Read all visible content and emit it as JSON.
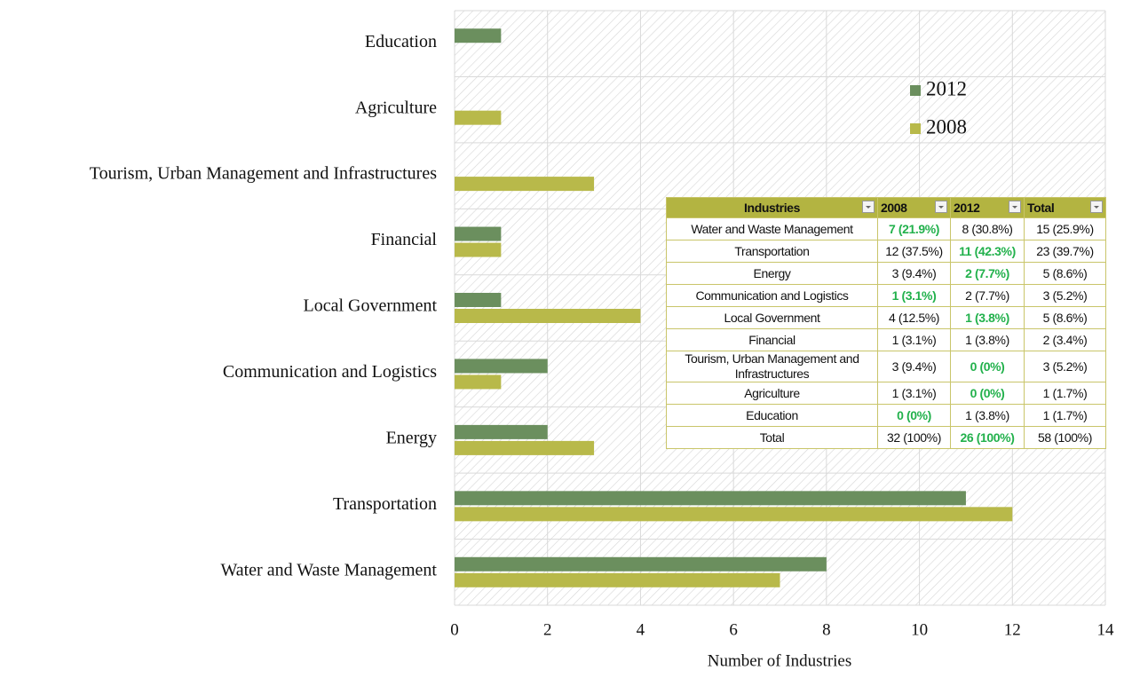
{
  "chart_data": {
    "type": "bar",
    "orientation": "horizontal",
    "categories": [
      "Education",
      "Agriculture",
      "Tourism, Urban Management and Infrastructures",
      "Financial",
      "Local Government",
      "Communication and Logistics",
      "Energy",
      "Transportation",
      "Water and Waste Management"
    ],
    "series": [
      {
        "name": "2012",
        "color": "#6b8f5e",
        "values": [
          1,
          0,
          0,
          1,
          1,
          2,
          2,
          11,
          8
        ]
      },
      {
        "name": "2008",
        "color": "#b8b94a",
        "values": [
          0,
          1,
          3,
          1,
          4,
          1,
          3,
          12,
          7
        ]
      }
    ],
    "xlim": [
      0,
      14
    ],
    "xticks": [
      0,
      2,
      4,
      6,
      8,
      10,
      12,
      14
    ],
    "xlabel": "Number of Industries",
    "grid": true,
    "legend": "upper-right",
    "table": {
      "header": [
        "Industries",
        "2008",
        "2012",
        "Total"
      ],
      "header_color": "#b3b441",
      "highlight_color": "#22b14c",
      "rows": [
        [
          "Water and Waste Management",
          "7 (21.9%)",
          "8 (30.8%)",
          "15 (25.9%)"
        ],
        [
          "Transportation",
          "12 (37.5%)",
          "11 (42.3%)",
          "23 (39.7%)"
        ],
        [
          "Energy",
          "3 (9.4%)",
          "2 (7.7%)",
          "5 (8.6%)"
        ],
        [
          "Communication and Logistics",
          "1 (3.1%)",
          "2 (7.7%)",
          "3 (5.2%)"
        ],
        [
          "Local Government",
          "4 (12.5%)",
          "1 (3.8%)",
          "5 (8.6%)"
        ],
        [
          "Financial",
          "1 (3.1%)",
          "1 (3.8%)",
          "2 (3.4%)"
        ],
        [
          "Tourism, Urban Management and Infrastructures",
          "3 (9.4%)",
          "0 (0%)",
          "3 (5.2%)"
        ],
        [
          "Agriculture",
          "1 (3.1%)",
          "0 (0%)",
          "1 (1.7%)"
        ],
        [
          "Education",
          "0 (0%)",
          "1 (3.8%)",
          "1 (1.7%)"
        ],
        [
          "Total",
          "32 (100%)",
          "26 (100%)",
          "58 (100%)"
        ]
      ],
      "highlight": [
        [
          false,
          true,
          false,
          false
        ],
        [
          false,
          false,
          true,
          false
        ],
        [
          false,
          false,
          true,
          false
        ],
        [
          false,
          true,
          false,
          false
        ],
        [
          false,
          false,
          true,
          false
        ],
        [
          false,
          false,
          false,
          false
        ],
        [
          false,
          false,
          true,
          false
        ],
        [
          false,
          false,
          true,
          false
        ],
        [
          false,
          true,
          false,
          false
        ],
        [
          false,
          false,
          true,
          false
        ]
      ]
    }
  }
}
